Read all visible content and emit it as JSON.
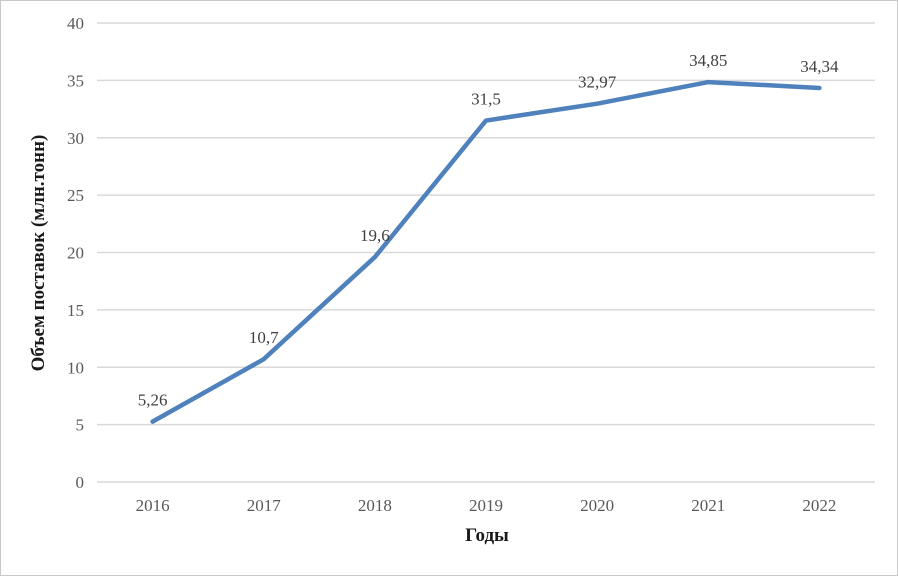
{
  "figure": {
    "background_color": "#FFFFFF",
    "border_color": "#C9C9C9"
  },
  "chart_data": {
    "type": "line",
    "title": "",
    "xlabel": "Годы",
    "ylabel": "Объем поставок (млн.тонн)",
    "categories": [
      "2016",
      "2017",
      "2018",
      "2019",
      "2020",
      "2021",
      "2022"
    ],
    "series": [
      {
        "values": [
          5.26,
          10.7,
          19.6,
          31.5,
          32.97,
          34.85,
          34.34
        ],
        "value_labels": [
          "5,26",
          "10,7",
          "19,6",
          "31,5",
          "32,97",
          "34,85",
          "34,34"
        ],
        "color": "#4F81BD"
      }
    ],
    "ylim": [
      0,
      40
    ],
    "yticks": [
      0,
      5,
      10,
      15,
      20,
      25,
      30,
      35,
      40
    ],
    "grid": true,
    "gridline_color": "#D9D9D9",
    "tick_label_color": "#595959",
    "data_label_color": "#404040",
    "axis_title_color": "#1A1A1A",
    "legend": "none"
  }
}
